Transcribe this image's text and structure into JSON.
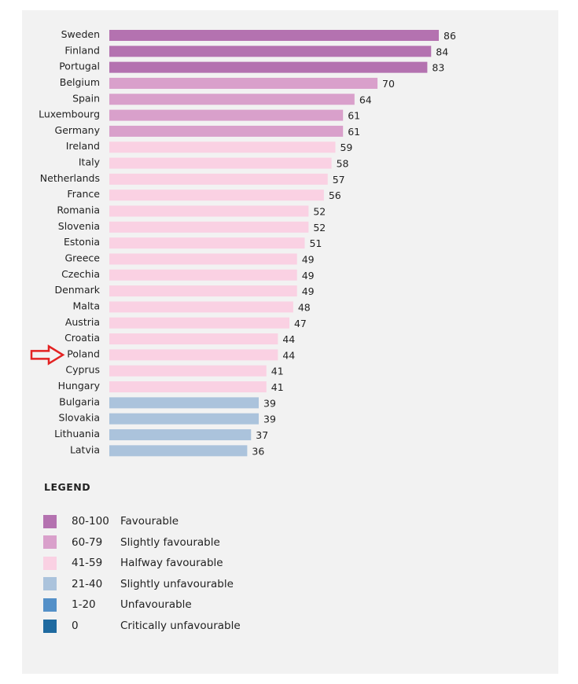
{
  "chart_data": {
    "type": "bar",
    "orientation": "horizontal",
    "categories": [
      "Sweden",
      "Finland",
      "Portugal",
      "Belgium",
      "Spain",
      "Luxembourg",
      "Germany",
      "Ireland",
      "Italy",
      "Netherlands",
      "France",
      "Romania",
      "Slovenia",
      "Estonia",
      "Greece",
      "Czechia",
      "Denmark",
      "Malta",
      "Austria",
      "Croatia",
      "Poland",
      "Cyprus",
      "Hungary",
      "Bulgaria",
      "Slovakia",
      "Lithuania",
      "Latvia"
    ],
    "values": [
      86,
      84,
      83,
      70,
      64,
      61,
      61,
      59,
      58,
      57,
      56,
      52,
      52,
      51,
      49,
      49,
      49,
      48,
      47,
      44,
      44,
      41,
      41,
      39,
      39,
      37,
      36
    ],
    "xlim": [
      0,
      100
    ],
    "grid": false,
    "data_labels": true,
    "highlighted_category": "Poland",
    "highlight_marker": "red-arrow",
    "legend": {
      "title": "LEGEND",
      "placement": "bottom-left",
      "items": [
        {
          "range": "80-100",
          "label": "Favourable",
          "color": "#b472b0",
          "min": 80
        },
        {
          "range": "60-79",
          "label": "Slightly favourable",
          "color": "#d9a0cb",
          "min": 60
        },
        {
          "range": "41-59",
          "label": "Halfway favourable",
          "color": "#fad1e3",
          "min": 41
        },
        {
          "range": "21-40",
          "label": "Slightly unfavourable",
          "color": "#abc3dc",
          "min": 21
        },
        {
          "range": "1-20",
          "label": "Unfavourable",
          "color": "#5490c8",
          "min": 1
        },
        {
          "range": "0",
          "label": "Critically unfavourable",
          "color": "#1f6aa0",
          "min": 0
        }
      ]
    }
  }
}
